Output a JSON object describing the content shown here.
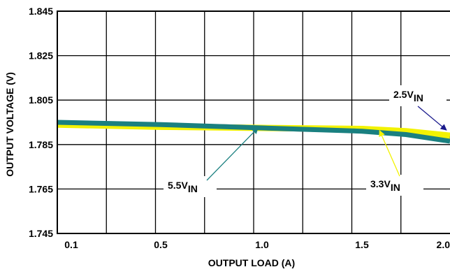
{
  "chart_data": {
    "type": "line",
    "xlabel": "OUTPUT LOAD (A)",
    "ylabel": "OUTPUT VOLTAGE (V)",
    "xlim": [
      0.1,
      2.0
    ],
    "ylim": [
      1.745,
      1.845
    ],
    "x_ticks": [
      0.1,
      0.5,
      1.0,
      1.5,
      2.0
    ],
    "x_tick_labels": [
      "0.1",
      "0.5",
      "1.0",
      "1.5",
      "2.0"
    ],
    "y_ticks": [
      1.745,
      1.765,
      1.785,
      1.805,
      1.825,
      1.845
    ],
    "y_tick_labels": [
      "1.745",
      "1.765",
      "1.785",
      "1.805",
      "1.825",
      "1.845"
    ],
    "grid": true,
    "series": [
      {
        "name": "2.5VIN",
        "color": "#1a1a8c",
        "x": [
          0.1,
          0.5,
          1.0,
          1.5,
          1.75,
          2.0
        ],
        "y": [
          1.7945,
          1.7935,
          1.7925,
          1.7915,
          1.7905,
          1.7885
        ]
      },
      {
        "name": "3.3VIN",
        "color": "#f2f200",
        "x": [
          0.1,
          0.5,
          1.0,
          1.5,
          1.75,
          2.0
        ],
        "y": [
          1.794,
          1.793,
          1.7925,
          1.792,
          1.791,
          1.789
        ]
      },
      {
        "name": "5.5VIN",
        "color": "#1a8080",
        "x": [
          0.1,
          0.5,
          1.0,
          1.5,
          1.75,
          2.0
        ],
        "y": [
          1.795,
          1.794,
          1.7925,
          1.791,
          1.7895,
          1.7865
        ]
      }
    ],
    "annotations": [
      {
        "main": "2.5V",
        "sub": "IN",
        "series": "2.5VIN",
        "target_x": 1.98,
        "target_y": 1.7915
      },
      {
        "main": "3.3V",
        "sub": "IN",
        "series": "3.3VIN",
        "target_x": 1.6,
        "target_y": 1.7913
      },
      {
        "main": "5.5V",
        "sub": "IN",
        "series": "5.5VIN",
        "target_x": 0.98,
        "target_y": 1.7925
      }
    ]
  }
}
